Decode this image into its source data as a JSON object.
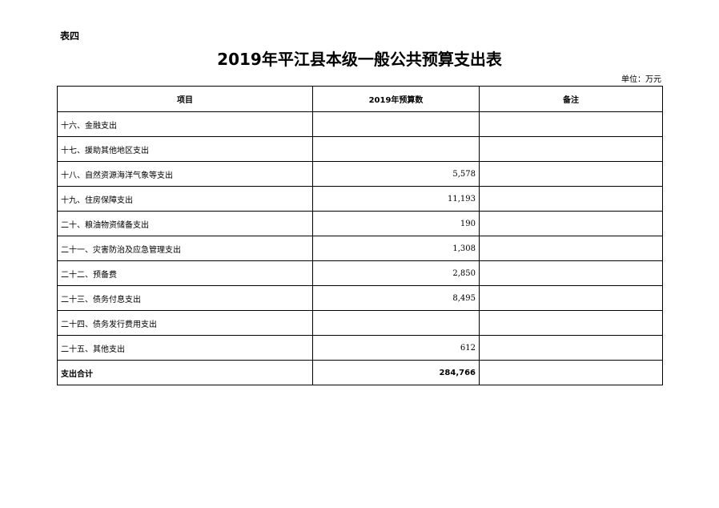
{
  "table_label": "表四",
  "title": "2019年平江县本级一般公共预算支出表",
  "unit": "单位：万元",
  "columns": [
    "项目",
    "2019年预算数",
    "备注"
  ],
  "rows": [
    {
      "item": "十六、金融支出",
      "amount": "",
      "note": ""
    },
    {
      "item": "十七、援助其他地区支出",
      "amount": "",
      "note": ""
    },
    {
      "item": "十八、自然资源海洋气象等支出",
      "amount": "5,578",
      "note": ""
    },
    {
      "item": "十九、住房保障支出",
      "amount": "11,193",
      "note": ""
    },
    {
      "item": "二十、粮油物资储备支出",
      "amount": "190",
      "note": ""
    },
    {
      "item": "二十一、灾害防治及应急管理支出",
      "amount": "1,308",
      "note": ""
    },
    {
      "item": "二十二、预备费",
      "amount": "2,850",
      "note": ""
    },
    {
      "item": "二十三、债务付息支出",
      "amount": "8,495",
      "note": ""
    },
    {
      "item": "二十四、债务发行费用支出",
      "amount": "",
      "note": ""
    },
    {
      "item": "二十五、其他支出",
      "amount": "612",
      "note": ""
    }
  ],
  "total": {
    "item": "支出合计",
    "amount": "284,766",
    "note": ""
  }
}
